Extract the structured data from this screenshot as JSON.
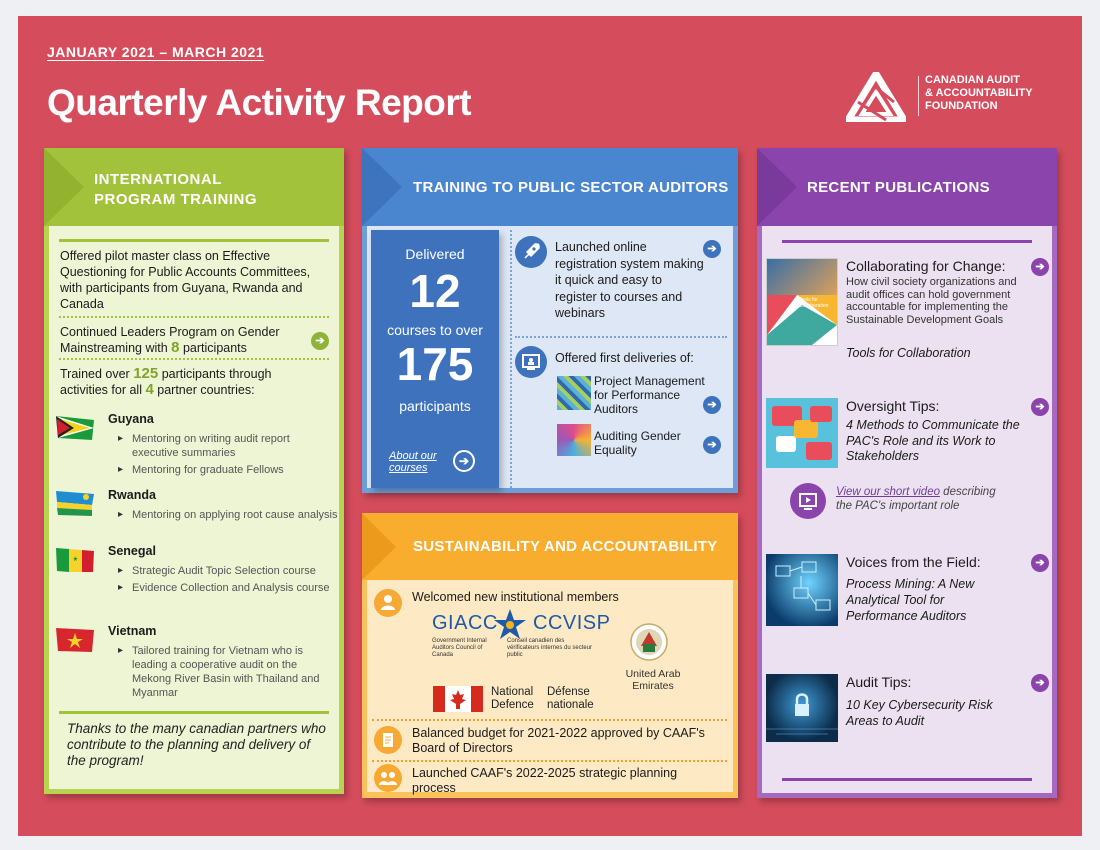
{
  "header": {
    "dateline": "JANUARY 2021 – MARCH 2021",
    "title": "Quarterly Activity Report",
    "logo_lines": [
      "CANADIAN AUDIT",
      "& ACCOUNTABILITY",
      "FOUNDATION"
    ]
  },
  "international": {
    "heading_line1": "INTERNATIONAL",
    "heading_line2": "PROGRAM TRAINING",
    "item1": "Offered pilot master class on Effective Questioning for Public Accounts Committees, with participants from Guyana, Rwanda and Canada",
    "item2_pre": "Continued Leaders Program on Gender Mainstreaming with ",
    "item2_num": "8",
    "item2_post": " participants",
    "item3_pre": "Trained over ",
    "item3_num": "125",
    "item3_mid": " participants through activities for all ",
    "item3_num2": "4",
    "item3_post": " partner countries:",
    "countries": [
      {
        "name": "Guyana",
        "items": [
          "Mentoring on writing audit report executive summaries",
          "Mentoring for graduate Fellows"
        ]
      },
      {
        "name": "Rwanda",
        "items": [
          "Mentoring on applying root cause analysis"
        ]
      },
      {
        "name": "Senegal",
        "items": [
          "Strategic Audit Topic Selection course",
          "Evidence Collection and Analysis course"
        ]
      },
      {
        "name": "Vietnam",
        "items": [
          "Tailored training for Vietnam who is leading a cooperative audit on the Mekong River Basin with Thailand and Myanmar"
        ]
      }
    ],
    "thanks": "Thanks to the many canadian partners who contribute to the planning and delivery of the program!"
  },
  "training": {
    "heading": "TRAINING TO PUBLIC SECTOR AUDITORS",
    "delivered": "Delivered",
    "courses_num": "12",
    "courses_text": "courses to over",
    "participants_num": "175",
    "participants_text": "participants",
    "about_link": "About our courses",
    "launched": "Launched online registration system making it quick and easy to register to courses and webinars",
    "offered": "Offered first deliveries of:",
    "course1": "Project Management for Performance Auditors",
    "course2": "Auditing Gender Equality"
  },
  "sustainability": {
    "heading": "SUSTAINABILITY AND ACCOUNTABILITY",
    "welcomed": "Welcomed new institutional members",
    "giacc": "GIACC",
    "ccvisp": "CCVISP",
    "giacc_sub": "Government Internal Auditors Council of Canada",
    "ccvisp_sub": "Conseil canadien des vérificateurs internes du secteur public",
    "nd_en1": "National",
    "nd_en2": "Defence",
    "nd_fr1": "Défense",
    "nd_fr2": "nationale",
    "uae1": "United Arab",
    "uae2": "Emirates",
    "budget": "Balanced budget for 2021-2022 approved by CAAF's Board of Directors",
    "strategic": "Launched CAAF's 2022-2025 strategic planning process"
  },
  "publications": {
    "heading": "RECENT PUBLICATIONS",
    "pub1_title": "Collaborating for Change:",
    "pub1_desc": "How civil society organizations and audit offices can hold government accountable for implementing the Sustainable Development Goals",
    "pub1_sub": "Tools for Collaboration",
    "pub1_cover": "Tools for Collaboration",
    "pub2_title": "Oversight Tips:",
    "pub2_desc": "4 Methods to Communicate the PAC's Role and its Work to Stakeholders",
    "video_link": "View our short video",
    "video_rest1": " describing",
    "video_rest2": "the PAC's important role",
    "pub3_title": "Voices from the Field:",
    "pub3_desc": "Process Mining: A New Analytical Tool for Performance Auditors",
    "pub4_title": "Audit Tips:",
    "pub4_desc": "10 Key Cybersecurity Risk Areas to Audit"
  },
  "colors": {
    "background": "#d54c5c",
    "green": "#a3c23b",
    "blue": "#4a86cf",
    "orange": "#f8ad2e",
    "purple": "#8a44ac"
  }
}
